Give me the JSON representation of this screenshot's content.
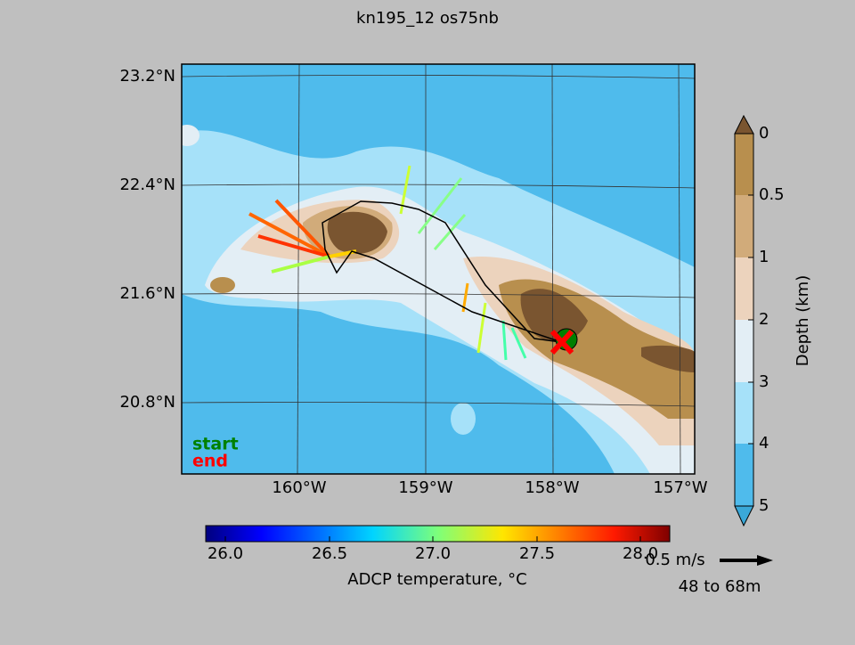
{
  "title": "kn195_12 os75nb",
  "map": {
    "lat_labels": [
      "23.2°N",
      "22.4°N",
      "21.6°N",
      "20.8°N"
    ],
    "lon_labels": [
      "160°W",
      "159°W",
      "158°W",
      "157°W"
    ],
    "legend": {
      "start": "start",
      "end": "end"
    }
  },
  "depth_colorbar": {
    "label": "Depth (km)",
    "ticks": [
      "0",
      "0.5",
      "1",
      "2",
      "3",
      "4",
      "5"
    ]
  },
  "temperature_colorbar": {
    "label": "ADCP temperature, °C",
    "ticks": [
      "26.0",
      "26.5",
      "27.0",
      "27.5",
      "28.0"
    ]
  },
  "reference_arrow": {
    "speed": "0.5 m/s",
    "depth_range": "48 to 68m"
  }
}
